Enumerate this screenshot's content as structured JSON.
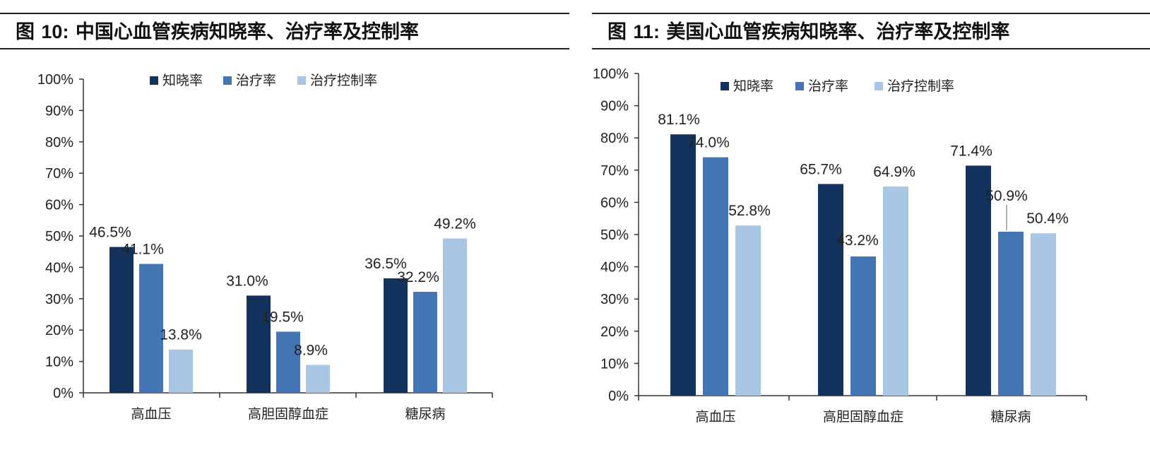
{
  "figures": [
    {
      "fig_prefix": "图",
      "fig_number": "10:",
      "title_text": "中国心血管疾病知晓率、治疗率及控制率"
    },
    {
      "fig_prefix": "图",
      "fig_number": "11:",
      "title_text": "美国心血管疾病知晓率、治疗率及控制率"
    }
  ],
  "colors": {
    "awareness": "#14325e",
    "treatment": "#4575b4",
    "control": "#a9c6e4",
    "axis": "#333333",
    "leader_line": "#999999"
  },
  "chart_data": [
    {
      "type": "bar",
      "title": "图 10: 中国心血管疾病知晓率、治疗率及控制率",
      "categories": [
        "高血压",
        "高胆固醇血症",
        "糖尿病"
      ],
      "series": [
        {
          "name": "知晓率",
          "values": [
            46.5,
            31.0,
            36.5
          ],
          "labels": [
            "46.5%",
            "31.0%",
            "36.5%"
          ]
        },
        {
          "name": "治疗率",
          "values": [
            41.1,
            19.5,
            32.2
          ],
          "labels": [
            "41.1%",
            "19.5%",
            "32.2%"
          ]
        },
        {
          "name": "治疗控制率",
          "values": [
            13.8,
            8.9,
            49.2
          ],
          "labels": [
            "13.8%",
            "8.9%",
            "49.2%"
          ]
        }
      ],
      "yticks": [
        "0%",
        "10%",
        "20%",
        "30%",
        "40%",
        "50%",
        "60%",
        "70%",
        "80%",
        "90%",
        "100%"
      ],
      "ylim": [
        0,
        100
      ],
      "xlabel": "",
      "ylabel": "",
      "grid": false,
      "legend": "top-center"
    },
    {
      "type": "bar",
      "title": "图 11: 美国心血管疾病知晓率、治疗率及控制率",
      "categories": [
        "高血压",
        "高胆固醇血症",
        "糖尿病"
      ],
      "series": [
        {
          "name": "知晓率",
          "values": [
            81.1,
            65.7,
            71.4
          ],
          "labels": [
            "81.1%",
            "65.7%",
            "71.4%"
          ]
        },
        {
          "name": "治疗率",
          "values": [
            74.0,
            43.2,
            50.9
          ],
          "labels": [
            "74.0%",
            "43.2%",
            "50.9%"
          ]
        },
        {
          "name": "治疗控制率",
          "values": [
            52.8,
            64.9,
            50.4
          ],
          "labels": [
            "52.8%",
            "64.9%",
            "50.4%"
          ]
        }
      ],
      "yticks": [
        "0%",
        "10%",
        "20%",
        "30%",
        "40%",
        "50%",
        "60%",
        "70%",
        "80%",
        "90%",
        "100%"
      ],
      "ylim": [
        0,
        100
      ],
      "xlabel": "",
      "ylabel": "",
      "grid": false,
      "legend": "top-center"
    }
  ]
}
